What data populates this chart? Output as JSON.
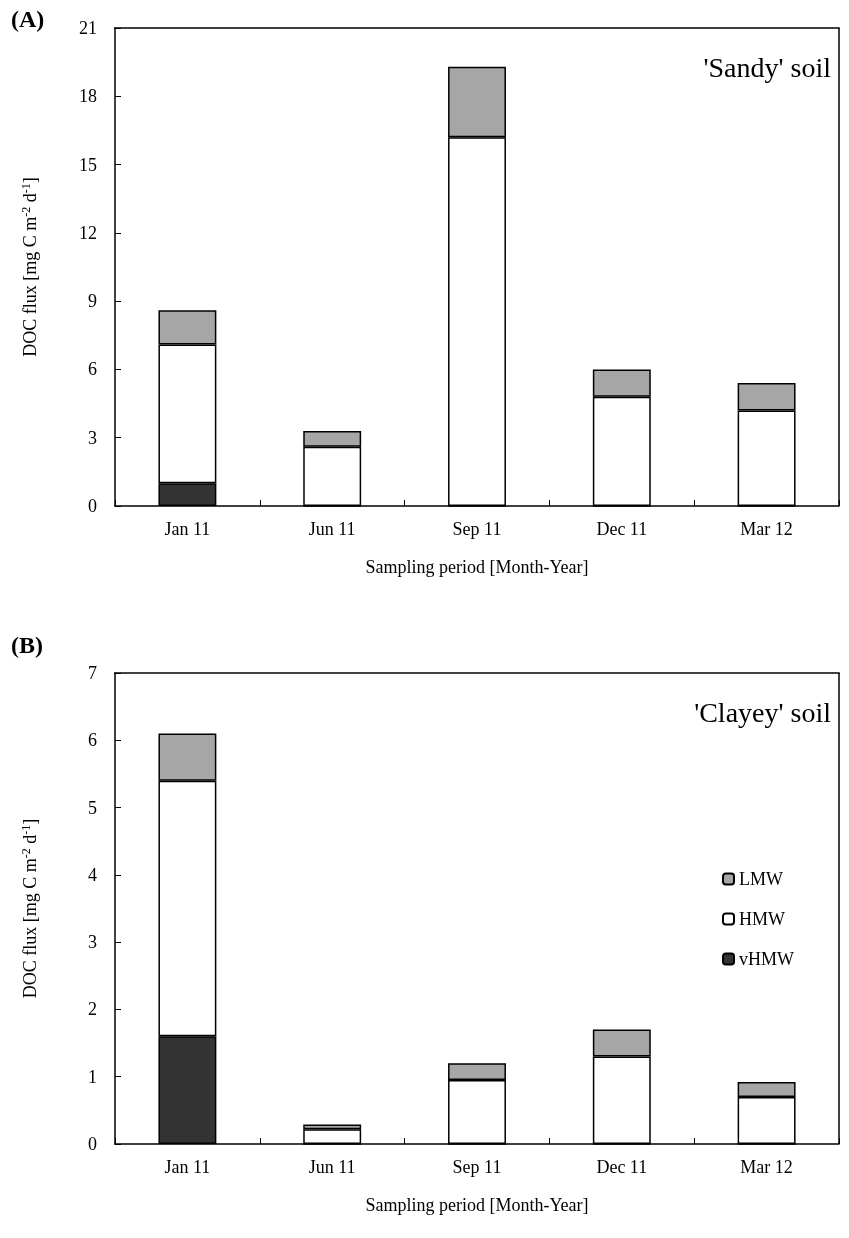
{
  "chart_data": [
    {
      "type": "bar",
      "title": "(A)",
      "annotations": [
        "'Sandy' soil"
      ],
      "xlabel": "Sampling period [Month-Year]",
      "ylabel": "DOC flux [mg C m$^{-2}$ d$^{-1}$]",
      "categories": [
        "Jan 11",
        "Jun 11",
        "Sep 11",
        "Dec 11",
        "Mar 12"
      ],
      "stacked": true,
      "ylim": [
        0,
        21
      ],
      "yticks": [
        0,
        3,
        6,
        9,
        12,
        15,
        18,
        21
      ],
      "grid": false,
      "legend": false,
      "series": [
        {
          "color": "#333333",
          "values": [
            1.0,
            0,
            0,
            0,
            0
          ]
        },
        {
          "color": "#ffffff",
          "values": [
            6.1,
            2.6,
            16.2,
            4.8,
            4.2
          ]
        },
        {
          "color": "#a6a6a6",
          "values": [
            1.5,
            0.7,
            3.1,
            1.2,
            1.2
          ]
        }
      ]
    },
    {
      "type": "bar",
      "title": "(B)",
      "annotations": [
        "'Clayey' soil"
      ],
      "xlabel": "Sampling period [Month-Year]",
      "ylabel": "DOC flux [mg C m$^{-2}$ d$^{-1}$]",
      "categories": [
        "Jan 11",
        "Jun 11",
        "Sep 11",
        "Dec 11",
        "Mar 12"
      ],
      "stacked": true,
      "ylim": [
        0,
        7
      ],
      "yticks": [
        0,
        1,
        2,
        3,
        4,
        5,
        6,
        7
      ],
      "grid": false,
      "legend": "right",
      "series": [
        {
          "name": "vHMW",
          "color": "#333333",
          "values": [
            1.6,
            0,
            0,
            0,
            0
          ]
        },
        {
          "name": "HMW",
          "color": "#ffffff",
          "values": [
            3.8,
            0.22,
            0.95,
            1.3,
            0.7
          ]
        },
        {
          "name": "LMW",
          "color": "#a6a6a6",
          "values": [
            0.7,
            0.07,
            0.25,
            0.4,
            0.22
          ]
        }
      ]
    }
  ]
}
